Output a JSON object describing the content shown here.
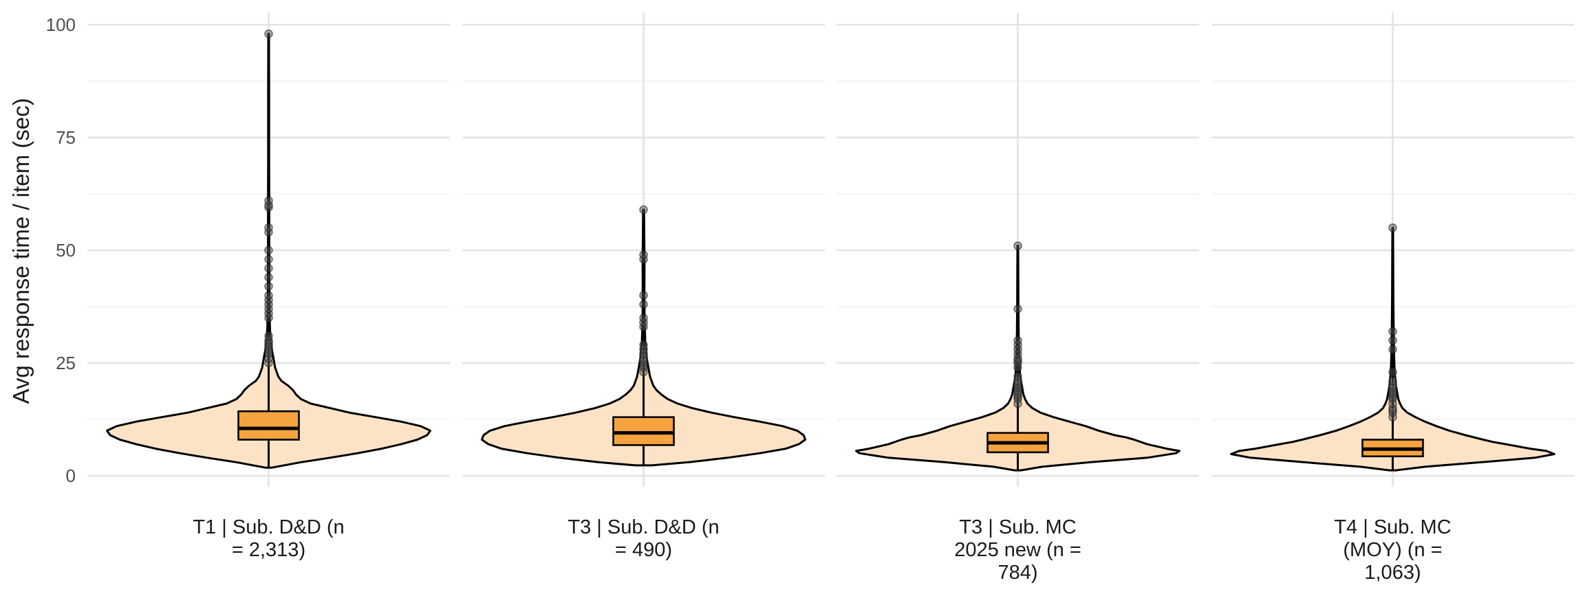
{
  "chart_data": {
    "type": "violin",
    "ylabel": "Avg response time / item (sec)",
    "ylim": [
      0,
      100
    ],
    "yticks": [
      "0",
      "25",
      "50",
      "75",
      "100"
    ],
    "grid": true,
    "categories": [
      {
        "label_lines": [
          "T1 | Sub. D&D (n",
          "= 2,313)"
        ],
        "min": 1.8,
        "q1": 8,
        "median": 10.5,
        "q3": 14.3,
        "whisker_low": 1.8,
        "whisker_high": 98,
        "density": [
          [
            1.8,
            0.02
          ],
          [
            3,
            0.2
          ],
          [
            4,
            0.38
          ],
          [
            5,
            0.55
          ],
          [
            6,
            0.7
          ],
          [
            7,
            0.82
          ],
          [
            8,
            0.92
          ],
          [
            9,
            0.98
          ],
          [
            10,
            1.0
          ],
          [
            11,
            0.94
          ],
          [
            12,
            0.82
          ],
          [
            13,
            0.66
          ],
          [
            14,
            0.5
          ],
          [
            15,
            0.38
          ],
          [
            16,
            0.26
          ],
          [
            17,
            0.2
          ],
          [
            18,
            0.17
          ],
          [
            19,
            0.15
          ],
          [
            20,
            0.12
          ],
          [
            21,
            0.08
          ],
          [
            22,
            0.06
          ],
          [
            24,
            0.04
          ],
          [
            26,
            0.03
          ],
          [
            28,
            0.02
          ],
          [
            30,
            0.012
          ],
          [
            33,
            0.008
          ],
          [
            36,
            0.006
          ],
          [
            40,
            0.005
          ],
          [
            50,
            0.004
          ],
          [
            61,
            0.004
          ],
          [
            70,
            0.003
          ],
          [
            85,
            0.003
          ],
          [
            98,
            0.002
          ]
        ],
        "outliers": [
          25,
          26,
          27,
          27.5,
          28,
          28.5,
          29,
          29.5,
          30,
          31,
          35,
          36,
          37,
          38,
          39,
          40,
          42,
          44,
          46,
          48,
          50,
          54,
          55,
          59.5,
          60,
          61,
          98
        ]
      },
      {
        "label_lines": [
          "T3 | Sub. D&D (n",
          "= 490)"
        ],
        "min": 2.3,
        "q1": 6.8,
        "median": 9.5,
        "q3": 13,
        "whisker_low": 2.3,
        "whisker_high": 59,
        "density": [
          [
            2.3,
            0.05
          ],
          [
            3,
            0.28
          ],
          [
            4,
            0.52
          ],
          [
            5,
            0.72
          ],
          [
            6,
            0.88
          ],
          [
            7,
            0.96
          ],
          [
            8,
            1.0
          ],
          [
            9,
            0.99
          ],
          [
            10,
            0.95
          ],
          [
            11,
            0.86
          ],
          [
            12,
            0.72
          ],
          [
            13,
            0.56
          ],
          [
            14,
            0.42
          ],
          [
            15,
            0.3
          ],
          [
            16,
            0.21
          ],
          [
            17,
            0.15
          ],
          [
            18,
            0.11
          ],
          [
            19,
            0.08
          ],
          [
            20,
            0.06
          ],
          [
            22,
            0.04
          ],
          [
            24,
            0.03
          ],
          [
            26,
            0.02
          ],
          [
            30,
            0.01
          ],
          [
            35,
            0.006
          ],
          [
            40,
            0.005
          ],
          [
            48,
            0.006
          ],
          [
            50,
            0.005
          ],
          [
            55,
            0.004
          ],
          [
            59,
            0.003
          ]
        ],
        "outliers": [
          23,
          24,
          24.5,
          25,
          25.5,
          26,
          27,
          28,
          29,
          33,
          34,
          35,
          38,
          40,
          48,
          49,
          59
        ]
      },
      {
        "label_lines": [
          "T3 | Sub. MC",
          "2025 new (n =",
          "784)"
        ],
        "min": 1.2,
        "q1": 5.2,
        "median": 7.3,
        "q3": 9.5,
        "whisker_low": 1.2,
        "whisker_high": 51,
        "density": [
          [
            1.2,
            0.02
          ],
          [
            2,
            0.15
          ],
          [
            3,
            0.45
          ],
          [
            4,
            0.8
          ],
          [
            5,
            0.98
          ],
          [
            5.5,
            1.0
          ],
          [
            6,
            0.92
          ],
          [
            7,
            0.8
          ],
          [
            8,
            0.72
          ],
          [
            8.5,
            0.67
          ],
          [
            9,
            0.6
          ],
          [
            10,
            0.5
          ],
          [
            11,
            0.42
          ],
          [
            12,
            0.32
          ],
          [
            13,
            0.22
          ],
          [
            14,
            0.14
          ],
          [
            15,
            0.09
          ],
          [
            16,
            0.06
          ],
          [
            17,
            0.045
          ],
          [
            18,
            0.035
          ],
          [
            20,
            0.025
          ],
          [
            22,
            0.015
          ],
          [
            25,
            0.01
          ],
          [
            30,
            0.006
          ],
          [
            37,
            0.004
          ],
          [
            45,
            0.003
          ],
          [
            51,
            0.002
          ]
        ],
        "outliers": [
          16,
          17,
          17.5,
          18,
          18.5,
          19,
          19.5,
          20,
          20.5,
          21,
          22,
          24,
          25,
          25.5,
          26,
          27,
          28,
          29,
          30,
          37,
          51
        ]
      },
      {
        "label_lines": [
          "T4 | Sub. MC",
          "(MOY) (n =",
          "1,063)"
        ],
        "min": 1.2,
        "q1": 4.3,
        "median": 5.9,
        "q3": 8,
        "whisker_low": 1.2,
        "whisker_high": 55,
        "density": [
          [
            1.2,
            0.02
          ],
          [
            2,
            0.2
          ],
          [
            3,
            0.55
          ],
          [
            4,
            0.88
          ],
          [
            4.8,
            1.0
          ],
          [
            5.5,
            0.95
          ],
          [
            6,
            0.85
          ],
          [
            7,
            0.7
          ],
          [
            7.5,
            0.62
          ],
          [
            8,
            0.56
          ],
          [
            9,
            0.45
          ],
          [
            10,
            0.35
          ],
          [
            11,
            0.27
          ],
          [
            12,
            0.2
          ],
          [
            13,
            0.14
          ],
          [
            14,
            0.09
          ],
          [
            15,
            0.06
          ],
          [
            16,
            0.045
          ],
          [
            17,
            0.035
          ],
          [
            18,
            0.03
          ],
          [
            20,
            0.02
          ],
          [
            23,
            0.012
          ],
          [
            27,
            0.008
          ],
          [
            32,
            0.006
          ],
          [
            40,
            0.004
          ],
          [
            48,
            0.003
          ],
          [
            55,
            0.002
          ]
        ],
        "outliers": [
          13,
          14,
          14.5,
          15,
          16,
          17,
          17.5,
          18,
          18.5,
          19,
          19.5,
          20,
          21,
          23,
          28,
          30,
          32,
          55
        ]
      }
    ]
  },
  "colors": {
    "violin_fill": "#fde3c6",
    "box_fill": "#f5a33e",
    "outline": "#000000",
    "outlier": "#555555",
    "grid_major": "#e3e3e3",
    "grid_minor": "#efefef"
  }
}
